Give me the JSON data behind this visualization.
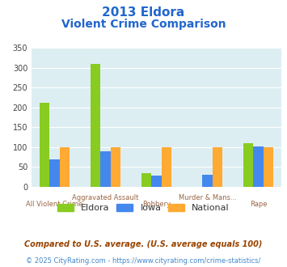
{
  "title_line1": "2013 Eldora",
  "title_line2": "Violent Crime Comparison",
  "categories": [
    "All Violent Crime",
    "Aggravated Assault",
    "Robbery",
    "Murder & Mans...",
    "Rape"
  ],
  "series": {
    "Eldora": [
      213,
      310,
      35,
      0,
      110
    ],
    "Iowa": [
      70,
      90,
      28,
      30,
      102
    ],
    "National": [
      100,
      100,
      100,
      100,
      100
    ]
  },
  "colors": {
    "Eldora": "#88cc22",
    "Iowa": "#4488ee",
    "National": "#ffaa33"
  },
  "ylim": [
    0,
    350
  ],
  "yticks": [
    0,
    50,
    100,
    150,
    200,
    250,
    300,
    350
  ],
  "plot_bg": "#ddeef2",
  "title_color": "#2266cc",
  "xlabel_top_color": "#996644",
  "xlabel_bot_color": "#996644",
  "legend_text_color": "#333333",
  "footnote1": "Compared to U.S. average. (U.S. average equals 100)",
  "footnote2": "© 2025 CityRating.com - https://www.cityrating.com/crime-statistics/",
  "footnote1_color": "#994400",
  "footnote2_color": "#4488cc"
}
